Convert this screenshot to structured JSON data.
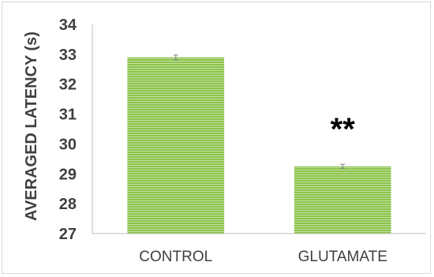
{
  "chart_data": {
    "type": "bar",
    "categories": [
      "CONTROL",
      "GLUTAMATE"
    ],
    "series": [
      {
        "values": [
          32.9,
          29.25
        ],
        "error": [
          0.05,
          0.04
        ],
        "color": "#8bc34a"
      }
    ],
    "title": "",
    "xlabel": "",
    "ylabel": "AVERAGED LATENCY (s)",
    "ylim": [
      27,
      34
    ],
    "yticks": [
      27,
      28,
      29,
      30,
      31,
      32,
      33,
      34
    ],
    "grid": false,
    "legend": "none",
    "annotations": [
      {
        "category": "GLUTAMATE",
        "text": "**"
      }
    ],
    "colors": {
      "bar": "#8bc34a",
      "bar_stripe": "#c5e1a5",
      "axis": "#bfbfbf",
      "text": "#404040",
      "error_bar": "#7f7f7f"
    }
  }
}
